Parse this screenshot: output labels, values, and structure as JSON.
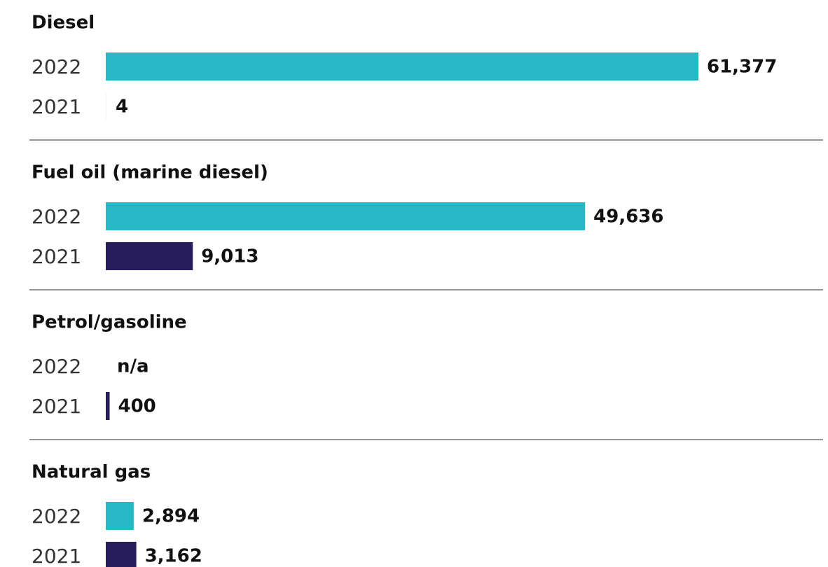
{
  "chart_data": {
    "type": "bar",
    "orientation": "horizontal",
    "categories": [
      "Diesel",
      "Fuel oil (marine diesel)",
      "Petrol/gasoline",
      "Natural gas"
    ],
    "series": [
      {
        "name": "2022",
        "color": "#26b8c4",
        "values": [
          61377,
          49636,
          null,
          2894
        ],
        "value_labels": [
          "61,377",
          "49,636",
          "n/a",
          "2,894"
        ]
      },
      {
        "name": "2021",
        "color": "#271d5b",
        "values": [
          4,
          9013,
          400,
          3162
        ],
        "value_labels": [
          "4",
          "9,013",
          "400",
          "3,162"
        ]
      }
    ]
  }
}
